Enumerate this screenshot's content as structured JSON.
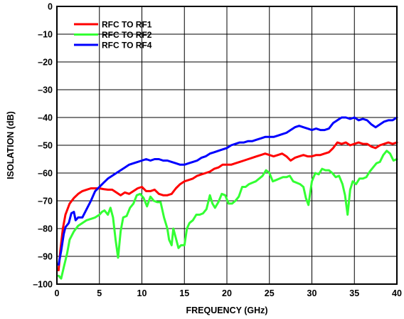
{
  "chart_data": {
    "type": "line",
    "title": "",
    "xlabel": "FREQUENCY (GHz)",
    "ylabel": "ISOLATION (dB)",
    "xlim": [
      0,
      40
    ],
    "ylim": [
      -100,
      0
    ],
    "xticks": [
      0,
      5,
      10,
      15,
      20,
      25,
      30,
      35,
      40
    ],
    "yticks": [
      0,
      -10,
      -20,
      -30,
      -40,
      -50,
      -60,
      -70,
      -80,
      -90,
      -100
    ],
    "xtick_labels": [
      "0",
      "5",
      "10",
      "15",
      "20",
      "25",
      "30",
      "35",
      "40"
    ],
    "ytick_labels": [
      "0",
      "–10",
      "–20",
      "–30",
      "–40",
      "–50",
      "–60",
      "–70",
      "–80",
      "–90",
      "–100"
    ],
    "grid": true,
    "legend_position": "top-left",
    "series": [
      {
        "name": "RFC TO RF1",
        "color": "#ff0000",
        "points": [
          [
            0.2,
            -95
          ],
          [
            0.4,
            -88
          ],
          [
            0.7,
            -80
          ],
          [
            1,
            -75
          ],
          [
            1.5,
            -71
          ],
          [
            2,
            -69
          ],
          [
            2.5,
            -67.5
          ],
          [
            3,
            -66.5
          ],
          [
            3.5,
            -66
          ],
          [
            4,
            -65.5
          ],
          [
            4.5,
            -65.5
          ],
          [
            5,
            -65.5
          ],
          [
            5.5,
            -65.8
          ],
          [
            6,
            -66
          ],
          [
            6.5,
            -66
          ],
          [
            7,
            -67
          ],
          [
            7.5,
            -68
          ],
          [
            8,
            -67
          ],
          [
            8.5,
            -67.5
          ],
          [
            9,
            -66.5
          ],
          [
            9.5,
            -65.5
          ],
          [
            10,
            -65
          ],
          [
            10.5,
            -66.5
          ],
          [
            11,
            -66.5
          ],
          [
            11.5,
            -66
          ],
          [
            12,
            -67.5
          ],
          [
            12.5,
            -68
          ],
          [
            13,
            -68
          ],
          [
            13.5,
            -67.5
          ],
          [
            14,
            -65.5
          ],
          [
            14.5,
            -64
          ],
          [
            15,
            -63
          ],
          [
            15.5,
            -62.5
          ],
          [
            16,
            -62
          ],
          [
            16.5,
            -61
          ],
          [
            17,
            -60.5
          ],
          [
            17.5,
            -60
          ],
          [
            18,
            -59.5
          ],
          [
            18.5,
            -58.5
          ],
          [
            19,
            -58
          ],
          [
            19.5,
            -57
          ],
          [
            20,
            -57
          ],
          [
            20.5,
            -57
          ],
          [
            21,
            -56.5
          ],
          [
            21.5,
            -56
          ],
          [
            22,
            -55.5
          ],
          [
            22.5,
            -55
          ],
          [
            23,
            -54.5
          ],
          [
            23.5,
            -54
          ],
          [
            24,
            -53.5
          ],
          [
            24.5,
            -53
          ],
          [
            25,
            -53.5
          ],
          [
            25.5,
            -54
          ],
          [
            26,
            -53.5
          ],
          [
            26.5,
            -53
          ],
          [
            27,
            -54
          ],
          [
            27.5,
            -55.5
          ],
          [
            28,
            -54.5
          ],
          [
            28.5,
            -54
          ],
          [
            29,
            -53.5
          ],
          [
            29.5,
            -54
          ],
          [
            30,
            -54
          ],
          [
            30.5,
            -53.5
          ],
          [
            31,
            -53.5
          ],
          [
            31.5,
            -53
          ],
          [
            32,
            -52.5
          ],
          [
            32.5,
            -51
          ],
          [
            33,
            -49
          ],
          [
            33.5,
            -49.5
          ],
          [
            34,
            -49
          ],
          [
            34.5,
            -50
          ],
          [
            35,
            -49.5
          ],
          [
            35.5,
            -49
          ],
          [
            36,
            -49.5
          ],
          [
            36.5,
            -49.5
          ],
          [
            37,
            -50.5
          ],
          [
            37.5,
            -51
          ],
          [
            38,
            -50
          ],
          [
            38.5,
            -49.5
          ],
          [
            39,
            -49
          ],
          [
            39.5,
            -49.5
          ],
          [
            40,
            -49
          ]
        ]
      },
      {
        "name": "RFC TO RF2",
        "color": "#33ff33",
        "points": [
          [
            0.2,
            -97
          ],
          [
            0.5,
            -98
          ],
          [
            0.8,
            -94
          ],
          [
            1.2,
            -89
          ],
          [
            1.5,
            -84
          ],
          [
            2,
            -81
          ],
          [
            2.5,
            -79
          ],
          [
            3,
            -78
          ],
          [
            3.5,
            -77
          ],
          [
            4,
            -76.5
          ],
          [
            4.5,
            -76
          ],
          [
            5,
            -75
          ],
          [
            5.3,
            -74
          ],
          [
            5.6,
            -73.5
          ],
          [
            6,
            -75
          ],
          [
            6.3,
            -72.5
          ],
          [
            6.6,
            -76
          ],
          [
            6.9,
            -84
          ],
          [
            7.2,
            -90.5
          ],
          [
            7.5,
            -81
          ],
          [
            7.8,
            -76
          ],
          [
            8.2,
            -75.5
          ],
          [
            8.6,
            -72.5
          ],
          [
            9,
            -71
          ],
          [
            9.4,
            -68
          ],
          [
            9.8,
            -67.5
          ],
          [
            10.2,
            -69
          ],
          [
            10.6,
            -72
          ],
          [
            11,
            -68.5
          ],
          [
            11.4,
            -70
          ],
          [
            11.8,
            -70.5
          ],
          [
            12.2,
            -70.5
          ],
          [
            12.6,
            -76
          ],
          [
            13,
            -80
          ],
          [
            13.2,
            -84
          ],
          [
            13.5,
            -86
          ],
          [
            13.7,
            -80
          ],
          [
            14,
            -83.5
          ],
          [
            14.3,
            -87
          ],
          [
            14.6,
            -86
          ],
          [
            15,
            -86
          ],
          [
            15.3,
            -80
          ],
          [
            15.6,
            -78
          ],
          [
            16,
            -77
          ],
          [
            16.4,
            -75
          ],
          [
            16.8,
            -75
          ],
          [
            17.2,
            -74.5
          ],
          [
            17.6,
            -73
          ],
          [
            18,
            -68
          ],
          [
            18.3,
            -71
          ],
          [
            18.6,
            -72.5
          ],
          [
            19,
            -70.5
          ],
          [
            19.4,
            -67.5
          ],
          [
            19.8,
            -68
          ],
          [
            20.2,
            -71
          ],
          [
            20.6,
            -71
          ],
          [
            21,
            -70
          ],
          [
            21.4,
            -68.5
          ],
          [
            21.8,
            -65
          ],
          [
            22.2,
            -65
          ],
          [
            22.6,
            -64
          ],
          [
            23,
            -63.5
          ],
          [
            23.4,
            -63
          ],
          [
            23.8,
            -62
          ],
          [
            24.2,
            -61
          ],
          [
            24.6,
            -59
          ],
          [
            25,
            -60
          ],
          [
            25.4,
            -63
          ],
          [
            25.8,
            -62.5
          ],
          [
            26.2,
            -62
          ],
          [
            26.6,
            -61.5
          ],
          [
            27,
            -61.5
          ],
          [
            27.4,
            -61
          ],
          [
            27.8,
            -63
          ],
          [
            28.2,
            -63.5
          ],
          [
            28.6,
            -64
          ],
          [
            29,
            -65
          ],
          [
            29.3,
            -69
          ],
          [
            29.6,
            -71.5
          ],
          [
            30,
            -63
          ],
          [
            30.4,
            -60
          ],
          [
            30.8,
            -60.5
          ],
          [
            31.2,
            -58.5
          ],
          [
            31.6,
            -59
          ],
          [
            32,
            -59
          ],
          [
            32.4,
            -60
          ],
          [
            32.8,
            -61.5
          ],
          [
            33.2,
            -61
          ],
          [
            33.6,
            -64
          ],
          [
            33.9,
            -68
          ],
          [
            34.2,
            -75
          ],
          [
            34.5,
            -66
          ],
          [
            34.8,
            -63
          ],
          [
            35.2,
            -64
          ],
          [
            35.6,
            -62
          ],
          [
            36,
            -62
          ],
          [
            36.4,
            -61.5
          ],
          [
            36.8,
            -59.5
          ],
          [
            37.2,
            -58
          ],
          [
            37.6,
            -56.5
          ],
          [
            38,
            -56
          ],
          [
            38.4,
            -53.5
          ],
          [
            38.8,
            -52
          ],
          [
            39.2,
            -53
          ],
          [
            39.6,
            -55.5
          ],
          [
            40,
            -55
          ]
        ]
      },
      {
        "name": "RFC TO RF4",
        "color": "#0000ff",
        "points": [
          [
            0.2,
            -93
          ],
          [
            0.5,
            -88
          ],
          [
            0.8,
            -82
          ],
          [
            1,
            -79.5
          ],
          [
            1.4,
            -78
          ],
          [
            1.7,
            -74.5
          ],
          [
            2,
            -74
          ],
          [
            2.2,
            -77
          ],
          [
            2.5,
            -76
          ],
          [
            3,
            -76
          ],
          [
            3.5,
            -73
          ],
          [
            4,
            -70
          ],
          [
            4.5,
            -66.5
          ],
          [
            5,
            -65
          ],
          [
            5.5,
            -63.5
          ],
          [
            6,
            -62
          ],
          [
            6.5,
            -61
          ],
          [
            7,
            -60
          ],
          [
            7.5,
            -59
          ],
          [
            8,
            -58
          ],
          [
            8.5,
            -57
          ],
          [
            9,
            -56.5
          ],
          [
            9.5,
            -56
          ],
          [
            10,
            -55.5
          ],
          [
            10.5,
            -55
          ],
          [
            11,
            -55.5
          ],
          [
            11.5,
            -55
          ],
          [
            12,
            -55
          ],
          [
            12.5,
            -55.5
          ],
          [
            13,
            -55.5
          ],
          [
            13.5,
            -56
          ],
          [
            14,
            -56.5
          ],
          [
            14.5,
            -57
          ],
          [
            15,
            -57
          ],
          [
            15.5,
            -56.5
          ],
          [
            16,
            -56
          ],
          [
            16.5,
            -55.5
          ],
          [
            17,
            -54.5
          ],
          [
            17.5,
            -54
          ],
          [
            18,
            -53
          ],
          [
            18.5,
            -52.5
          ],
          [
            19,
            -52
          ],
          [
            19.5,
            -51.5
          ],
          [
            20,
            -51
          ],
          [
            20.5,
            -50
          ],
          [
            21,
            -49.5
          ],
          [
            21.5,
            -49
          ],
          [
            22,
            -49
          ],
          [
            22.5,
            -48.5
          ],
          [
            23,
            -48.5
          ],
          [
            23.5,
            -48
          ],
          [
            24,
            -47.5
          ],
          [
            24.5,
            -47
          ],
          [
            25,
            -47
          ],
          [
            25.5,
            -47
          ],
          [
            26,
            -46.5
          ],
          [
            26.5,
            -46
          ],
          [
            27,
            -45.5
          ],
          [
            27.5,
            -44.5
          ],
          [
            28,
            -43.5
          ],
          [
            28.5,
            -43
          ],
          [
            29,
            -43.5
          ],
          [
            29.5,
            -44
          ],
          [
            30,
            -44.5
          ],
          [
            30.5,
            -44
          ],
          [
            31,
            -44.5
          ],
          [
            31.5,
            -44.5
          ],
          [
            32,
            -44
          ],
          [
            32.5,
            -42
          ],
          [
            33,
            -41
          ],
          [
            33.5,
            -40
          ],
          [
            34,
            -40
          ],
          [
            34.5,
            -40.5
          ],
          [
            35,
            -40
          ],
          [
            35.5,
            -41
          ],
          [
            36,
            -40.5
          ],
          [
            36.5,
            -41
          ],
          [
            37,
            -42.5
          ],
          [
            37.5,
            -43.5
          ],
          [
            38,
            -42.5
          ],
          [
            38.5,
            -41.5
          ],
          [
            39,
            -41
          ],
          [
            39.5,
            -41
          ],
          [
            40,
            -40
          ]
        ]
      }
    ]
  }
}
